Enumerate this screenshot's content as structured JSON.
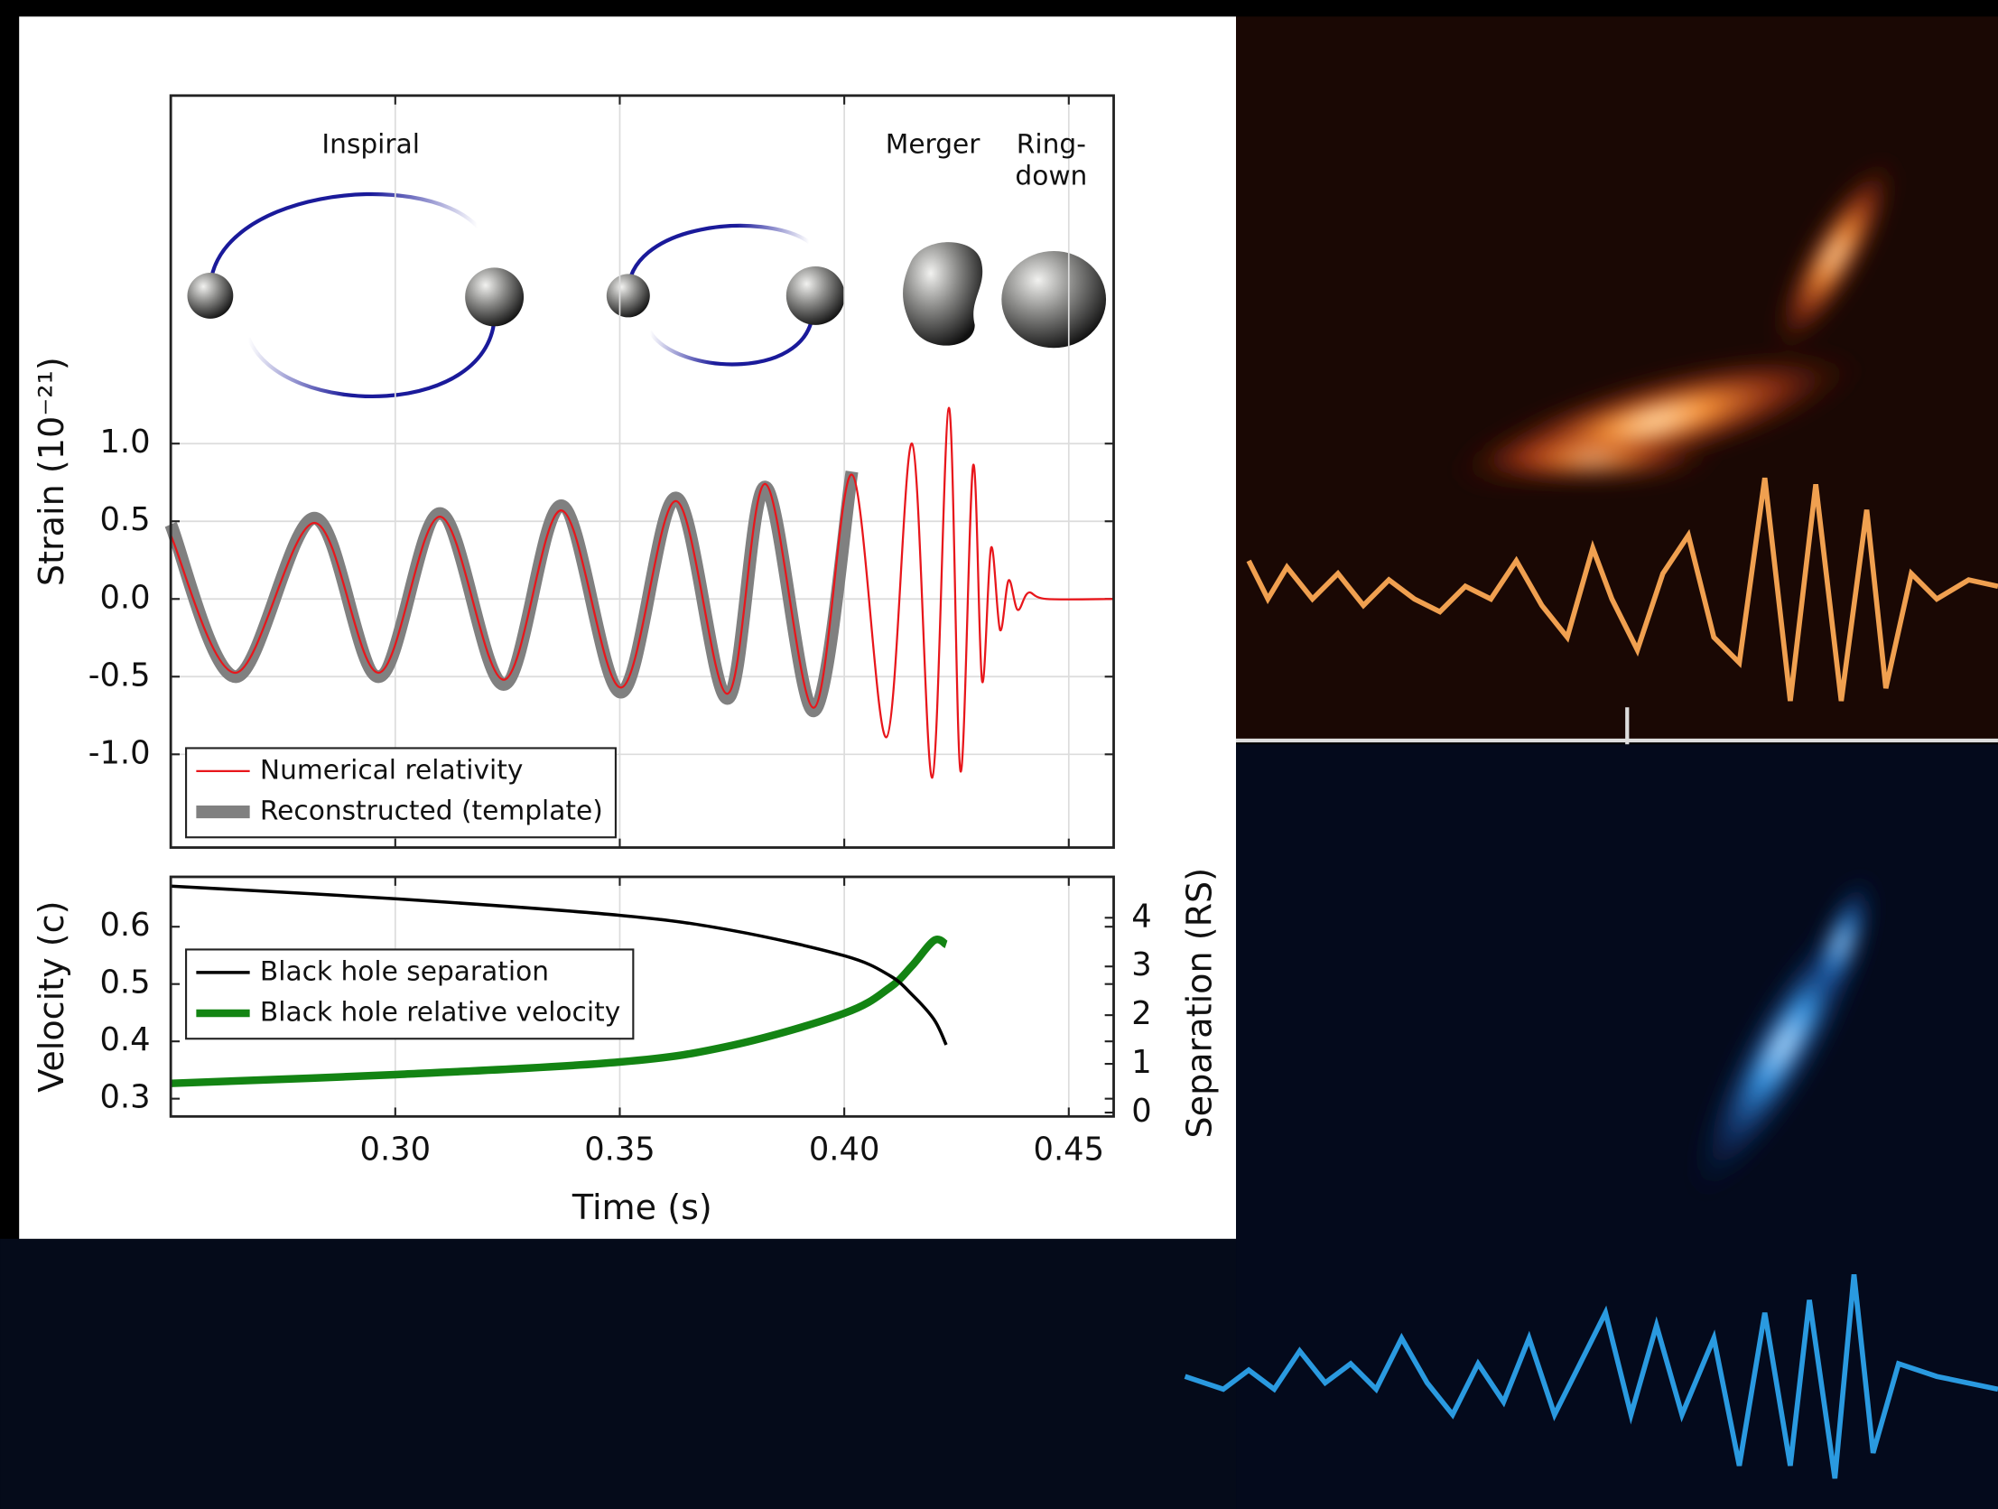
{
  "chart_data": [
    {
      "type": "line",
      "annotations": [
        "Inspiral",
        "Merger",
        "Ring-",
        "down"
      ],
      "ylabel": "Strain (10⁻²¹)",
      "x": [
        0.25,
        0.2645,
        0.282,
        0.2963,
        0.31,
        0.3242,
        0.337,
        0.3503,
        0.3625,
        0.374,
        0.3824,
        0.3932,
        0.4017,
        0.4094,
        0.4151,
        0.4196,
        0.4233,
        0.4259,
        0.4287,
        0.4307,
        0.4327,
        0.4347,
        0.4366,
        0.4386,
        0.441,
        0.445,
        0.46
      ],
      "series": [
        {
          "name": "Numerical relativity",
          "color": "#e8161b",
          "linewidth": 1.6,
          "values": [
            0.41,
            -0.475,
            0.49,
            -0.475,
            0.53,
            -0.52,
            0.57,
            -0.57,
            0.63,
            -0.61,
            0.74,
            -0.7,
            0.8,
            -0.89,
            1.0,
            -1.15,
            1.23,
            -1.11,
            0.86,
            -0.53,
            0.33,
            -0.2,
            0.12,
            -0.07,
            0.04,
            0,
            0
          ]
        },
        {
          "name": "Reconstructed (template)",
          "color": "#808080",
          "linewidth": 10,
          "values": [
            0.48,
            -0.5,
            0.52,
            -0.5,
            0.55,
            -0.55,
            0.6,
            -0.6,
            0.65,
            -0.64,
            0.72,
            -0.72,
            0.82,
            null,
            null,
            null,
            null,
            null,
            null,
            null,
            null,
            null,
            null,
            null,
            null,
            null,
            null
          ]
        }
      ],
      "xlim": [
        0.25,
        0.46
      ],
      "ylim": [
        -1.6,
        3.24
      ],
      "yticks": [
        {
          "value": -1,
          "label": "-1.0"
        },
        -0.5,
        {
          "value": 0,
          "label": "0.0"
        },
        0.5,
        {
          "value": 1,
          "label": "1.0"
        }
      ],
      "grid": true,
      "legend": "lower left"
    },
    {
      "type": "line",
      "xlabel": "Time (s)",
      "ylabel": "Velocity (c)",
      "y2label": "Separation (RS)",
      "x": [
        0.25,
        0.3,
        0.35,
        0.375,
        0.4,
        0.41,
        0.415,
        0.42,
        0.4227
      ],
      "series": [
        {
          "name": "Black hole separation",
          "color": "#000000",
          "linewidth": 2.5,
          "axis": "y2",
          "values": [
            4.65,
            4.39,
            4.05,
            3.74,
            3.22,
            2.82,
            2.43,
            1.91,
            1.39
          ]
        },
        {
          "name": "Black hole relative velocity",
          "color": "#138413",
          "linewidth": 6,
          "values": [
            0.3267,
            0.342,
            0.364,
            0.393,
            0.449,
            0.493,
            0.531,
            0.576,
            0.569
          ]
        }
      ],
      "xlim": [
        0.25,
        0.46
      ],
      "xticks": [
        {
          "value": 0.3,
          "label": "0.30"
        },
        0.35,
        {
          "value": 0.4,
          "label": "0.40"
        },
        0.45
      ],
      "ylim": [
        0.269,
        0.687
      ],
      "yticks": [
        0.3,
        0.4,
        0.5,
        0.6
      ],
      "y2lim": [
        -0.08,
        4.84
      ],
      "y2ticks": [
        0,
        1,
        2,
        3,
        4
      ],
      "grid": true,
      "legend": "center left"
    }
  ]
}
